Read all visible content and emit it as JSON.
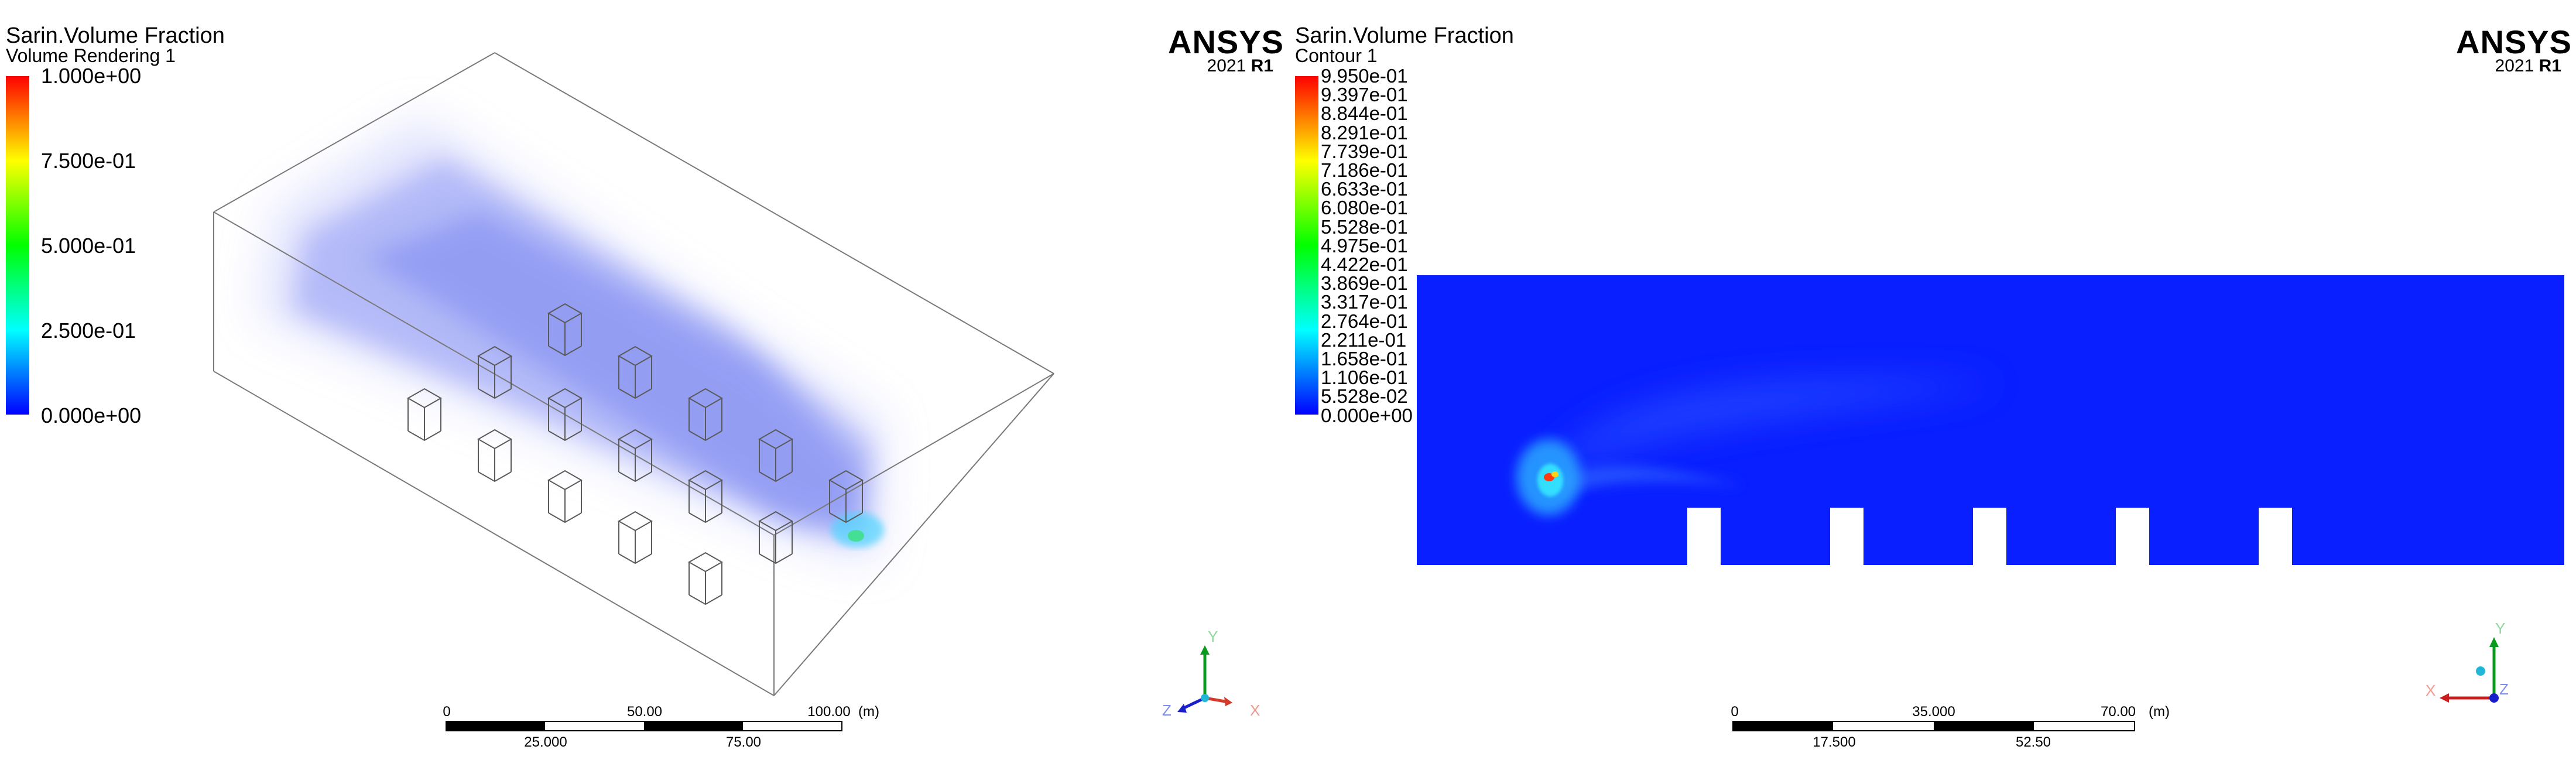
{
  "left": {
    "title": "Sarin.Volume Fraction",
    "subtitle": "Volume Rendering 1",
    "colorbar_labels": [
      "1.000e+00",
      "7.500e-01",
      "5.000e-01",
      "2.500e-01",
      "0.000e+00"
    ],
    "scale": {
      "ticks_top": [
        "0",
        "50.00",
        "100.00"
      ],
      "ticks_bottom": [
        "25.000",
        "75.00"
      ],
      "unit": "(m)"
    },
    "axes": {
      "x": "X",
      "y": "Y",
      "z": "Z"
    }
  },
  "right": {
    "title": "Sarin.Volume Fraction",
    "subtitle": "Contour 1",
    "colorbar_labels": [
      "9.950e-01",
      "9.397e-01",
      "8.844e-01",
      "8.291e-01",
      "7.739e-01",
      "7.186e-01",
      "6.633e-01",
      "6.080e-01",
      "5.528e-01",
      "4.975e-01",
      "4.422e-01",
      "3.869e-01",
      "3.317e-01",
      "2.764e-01",
      "2.211e-01",
      "1.658e-01",
      "1.106e-01",
      "5.528e-02",
      "0.000e+00"
    ],
    "scale": {
      "ticks_top": [
        "0",
        "35.000",
        "70.00"
      ],
      "ticks_bottom": [
        "17.500",
        "52.50"
      ],
      "unit": "(m)"
    },
    "axes": {
      "x": "X",
      "y": "Y",
      "z": "Z"
    }
  },
  "logo": {
    "brand": "ANSYS",
    "version": "2021",
    "release": "R1"
  },
  "colors": {
    "field_blue": "#0a1fff",
    "colormap": [
      "#0000ff",
      "#00ffff",
      "#00ff00",
      "#ffff00",
      "#ff0000"
    ]
  }
}
